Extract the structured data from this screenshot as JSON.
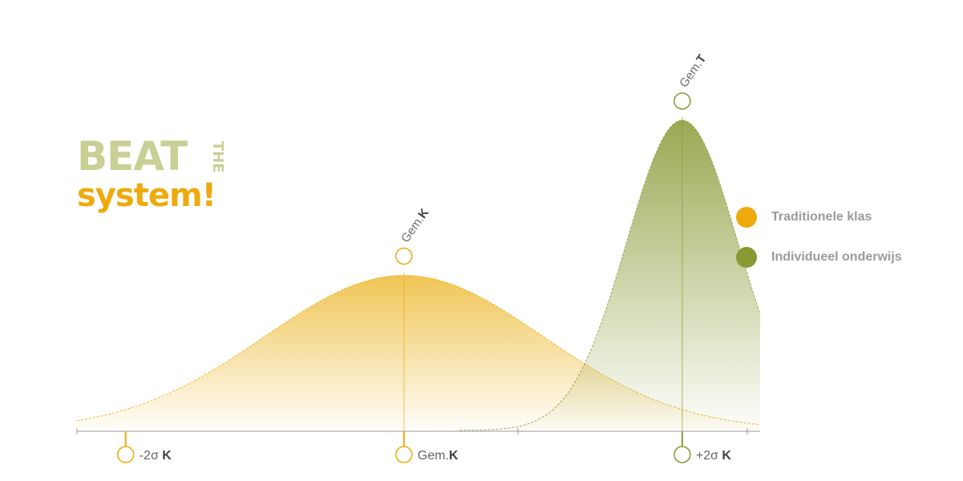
{
  "logo": {
    "line1": "BEAT",
    "small": "THE",
    "line2": "system!"
  },
  "chart_data": {
    "type": "area",
    "title": "",
    "series": [
      {
        "name": "Traditionele klas",
        "color": "#eeaa0d",
        "mean": 0,
        "sd": 1,
        "peak": 0.5
      },
      {
        "name": "Individueel onderwijs",
        "color": "#879a34",
        "mean": 2,
        "sd": 0.4,
        "peak": 1
      }
    ],
    "xlim": [
      -2.35,
      2.56
    ],
    "peak_labels": [
      {
        "prefix": "Gem.",
        "bold": "K",
        "x": 0
      },
      {
        "prefix": "Gem.",
        "bold": "T",
        "x": 2
      }
    ],
    "x_ticks": [
      {
        "prefix": "-2σ ",
        "bold": "K",
        "x": -2,
        "color": "#eeaa0d"
      },
      {
        "prefix": "Gem.",
        "bold": "K",
        "x": 0,
        "color": "#eeaa0d"
      },
      {
        "prefix": "+2σ ",
        "bold": "K",
        "x": 2,
        "color": "#879a34"
      }
    ]
  },
  "legend": [
    {
      "label": "Traditionele klas",
      "color": "#eeaa0d"
    },
    {
      "label": "Individueel onderwijs",
      "color": "#879a34"
    }
  ]
}
